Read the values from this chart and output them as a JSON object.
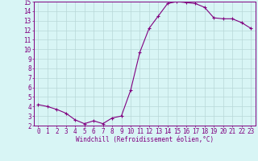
{
  "x": [
    0,
    1,
    2,
    3,
    4,
    5,
    6,
    7,
    8,
    9,
    10,
    11,
    12,
    13,
    14,
    15,
    16,
    17,
    18,
    19,
    20,
    21,
    22,
    23
  ],
  "y": [
    4.2,
    4.0,
    3.7,
    3.3,
    2.6,
    2.2,
    2.5,
    2.2,
    2.8,
    3.0,
    5.7,
    9.7,
    12.2,
    13.5,
    14.8,
    15.0,
    14.9,
    14.8,
    14.4,
    13.3,
    13.2,
    13.2,
    12.8,
    12.2
  ],
  "line_color": "#800080",
  "marker": "+",
  "marker_color": "#800080",
  "bg_color": "#d8f5f5",
  "grid_color": "#b8d8d8",
  "xlabel": "Windchill (Refroidissement éolien,°C)",
  "tick_color": "#800080",
  "ylim": [
    2,
    15
  ],
  "xlim": [
    -0.5,
    23.5
  ],
  "yticks": [
    2,
    3,
    4,
    5,
    6,
    7,
    8,
    9,
    10,
    11,
    12,
    13,
    14,
    15
  ],
  "xticks": [
    0,
    1,
    2,
    3,
    4,
    5,
    6,
    7,
    8,
    9,
    10,
    11,
    12,
    13,
    14,
    15,
    16,
    17,
    18,
    19,
    20,
    21,
    22,
    23
  ],
  "axis_line_color": "#800080",
  "linewidth": 0.8,
  "markersize": 3,
  "tick_fontsize": 5.5,
  "xlabel_fontsize": 5.5
}
